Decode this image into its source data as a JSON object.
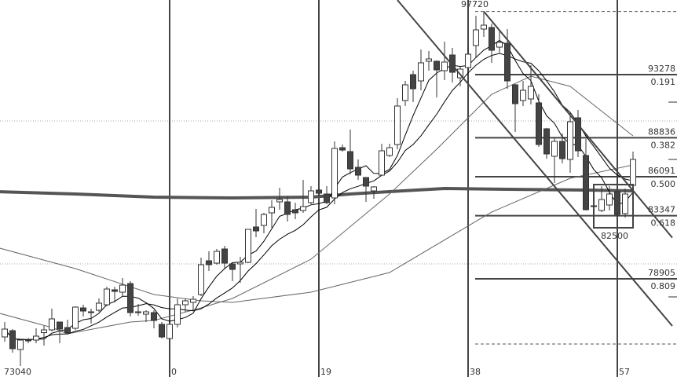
{
  "chart_data": {
    "type": "candlestick",
    "x_axis": {
      "ticks": [
        0,
        19,
        38,
        57
      ],
      "tick_labels": [
        "0",
        "19",
        "38",
        "57"
      ]
    },
    "price_labels": {
      "high": "97720",
      "low": "73040",
      "box_low": "82500"
    },
    "high_price": 97720,
    "low_price": 73040,
    "box": {
      "from_index": 54,
      "to_index": 59,
      "high": 86091,
      "low": 82500
    },
    "fib_levels": [
      {
        "price": "93278",
        "ratio": "0.191"
      },
      {
        "price": "88836",
        "ratio": "0.382"
      },
      {
        "price": "86091",
        "ratio": "0.500"
      },
      {
        "price": "83347",
        "ratio": "0.618"
      },
      {
        "price": "78905",
        "ratio": "0.809"
      }
    ],
    "candle_fields": [
      "open",
      "high",
      "low",
      "close"
    ],
    "first_index": -21,
    "candles": [
      [
        74815,
        75865,
        74483,
        75368
      ],
      [
        75257,
        75368,
        73709,
        73986
      ],
      [
        73931,
        74594,
        73040,
        74594
      ],
      [
        74594,
        74760,
        74373,
        74539
      ],
      [
        74594,
        75423,
        74373,
        74870
      ],
      [
        75119,
        75589,
        74207,
        75312
      ],
      [
        75312,
        76805,
        75202,
        76086
      ],
      [
        75865,
        75865,
        74373,
        75368
      ],
      [
        75478,
        76031,
        74981,
        75119
      ],
      [
        75423,
        76971,
        75312,
        76916
      ],
      [
        76860,
        77081,
        76252,
        76639
      ],
      [
        76584,
        76805,
        75755,
        76529
      ],
      [
        76694,
        77524,
        76584,
        77192
      ],
      [
        77081,
        78353,
        76971,
        78187
      ],
      [
        78132,
        78353,
        77248,
        78021
      ],
      [
        77966,
        78961,
        77690,
        78463
      ],
      [
        78574,
        78740,
        76252,
        76529
      ],
      [
        76584,
        77137,
        76307,
        76529
      ],
      [
        76418,
        76694,
        75865,
        76584
      ],
      [
        76529,
        76694,
        75423,
        75976
      ],
      [
        75699,
        75865,
        74704,
        74815
      ],
      [
        74704,
        75865,
        74594,
        75699
      ],
      [
        75699,
        77524,
        75478,
        77081
      ],
      [
        77081,
        77524,
        76584,
        77358
      ],
      [
        77248,
        77690,
        76694,
        77469
      ],
      [
        77800,
        80398,
        77690,
        79901
      ],
      [
        80177,
        80840,
        79459,
        79901
      ],
      [
        80011,
        81006,
        79901,
        80840
      ],
      [
        81006,
        81227,
        79569,
        80011
      ],
      [
        79956,
        80011,
        78740,
        79569
      ],
      [
        79956,
        80453,
        78629,
        80066
      ],
      [
        80066,
        82388,
        80011,
        82388
      ],
      [
        82554,
        83826,
        81835,
        82278
      ],
      [
        82664,
        83549,
        82112,
        83437
      ],
      [
        83549,
        84434,
        82499,
        83936
      ],
      [
        84323,
        85318,
        83770,
        84489
      ],
      [
        84323,
        84710,
        82941,
        83437
      ],
      [
        83770,
        84268,
        83107,
        83549
      ],
      [
        83715,
        85871,
        83549,
        83991
      ],
      [
        84268,
        85429,
        84157,
        85097
      ],
      [
        85152,
        85263,
        84710,
        84931
      ],
      [
        84876,
        85429,
        84157,
        84268
      ],
      [
        84599,
        88580,
        84157,
        88082
      ],
      [
        88137,
        88358,
        87861,
        87971
      ],
      [
        87861,
        89409,
        86258,
        86645
      ],
      [
        86755,
        87308,
        85871,
        86203
      ],
      [
        86037,
        86037,
        84323,
        85429
      ],
      [
        85097,
        85429,
        84544,
        85374
      ],
      [
        86203,
        88414,
        86203,
        87916
      ],
      [
        87585,
        88414,
        87474,
        88137
      ],
      [
        88358,
        91620,
        88027,
        91067
      ],
      [
        91454,
        92836,
        91067,
        92560
      ],
      [
        93278,
        93555,
        91344,
        92283
      ],
      [
        92836,
        95047,
        92173,
        94108
      ],
      [
        94218,
        94937,
        93555,
        94384
      ],
      [
        94218,
        94273,
        91675,
        93610
      ],
      [
        93555,
        95600,
        92891,
        94163
      ],
      [
        94660,
        95158,
        92726,
        93444
      ],
      [
        93057,
        93831,
        92449,
        93665
      ],
      [
        93776,
        95213,
        93555,
        94716
      ],
      [
        95324,
        97424,
        94495,
        96429
      ],
      [
        96485,
        97720,
        95932,
        96761
      ],
      [
        96595,
        96872,
        94108,
        94992
      ],
      [
        95213,
        96319,
        94826,
        95545
      ],
      [
        95490,
        96485,
        92283,
        92836
      ],
      [
        92560,
        92615,
        89243,
        91233
      ],
      [
        91454,
        92836,
        91067,
        92173
      ],
      [
        91565,
        93942,
        91177,
        92449
      ],
      [
        91288,
        91896,
        88193,
        88358
      ],
      [
        89464,
        89519,
        87363,
        87695
      ],
      [
        87529,
        88856,
        85650,
        88580
      ],
      [
        88580,
        89132,
        87032,
        87363
      ],
      [
        87308,
        90625,
        86368,
        89962
      ],
      [
        90238,
        90791,
        87474,
        87916
      ],
      [
        87585,
        88746,
        83715,
        83770
      ],
      [
        84047,
        84268,
        83826,
        83991
      ],
      [
        83715,
        85429,
        83604,
        84489
      ],
      [
        84102,
        85429,
        83715,
        84876
      ],
      [
        85042,
        85263,
        83328,
        83437
      ],
      [
        83494,
        85263,
        83217,
        84876
      ],
      [
        85484,
        87861,
        85429,
        87308
      ]
    ],
    "moving_averages": {
      "computed_periods": [
        5,
        10
      ],
      "long_thick": [
        [
          -22,
          85042
        ],
        [
          -12,
          84876
        ],
        [
          -2,
          84655
        ],
        [
          8,
          84599
        ],
        [
          18,
          84655
        ],
        [
          23,
          84876
        ],
        [
          28,
          85042
        ],
        [
          35,
          85263
        ],
        [
          43,
          85208
        ],
        [
          53,
          85152
        ],
        [
          59,
          85097
        ]
      ],
      "slow_gray": [
        [
          -22,
          81117
        ],
        [
          -12,
          79624
        ],
        [
          -2,
          77800
        ],
        [
          4,
          77358
        ],
        [
          8,
          77248
        ],
        [
          18,
          77966
        ],
        [
          28,
          79348
        ],
        [
          41,
          83604
        ],
        [
          51,
          85982
        ],
        [
          59,
          86921
        ]
      ],
      "mid_gray": [
        [
          -22,
          76529
        ],
        [
          -15,
          75478
        ],
        [
          -13,
          75036
        ],
        [
          -5,
          75865
        ],
        [
          -2,
          75976
        ],
        [
          4,
          76860
        ],
        [
          8,
          77524
        ],
        [
          18,
          80287
        ],
        [
          28,
          84876
        ],
        [
          34,
          88027
        ],
        [
          41,
          91896
        ],
        [
          46,
          93168
        ],
        [
          51,
          92449
        ],
        [
          59,
          88967
        ]
      ]
    },
    "trend_channel": {
      "upper": [
        [
          40,
          97720
        ],
        [
          64,
          81800
        ]
      ],
      "lower": [
        [
          29,
          98530
        ],
        [
          64,
          75590
        ]
      ]
    },
    "colors": {
      "up_body": "#ffffff",
      "down_body": "#444444",
      "lines": "#444444",
      "ma": "#000000",
      "ma_gray": "#666666"
    }
  }
}
